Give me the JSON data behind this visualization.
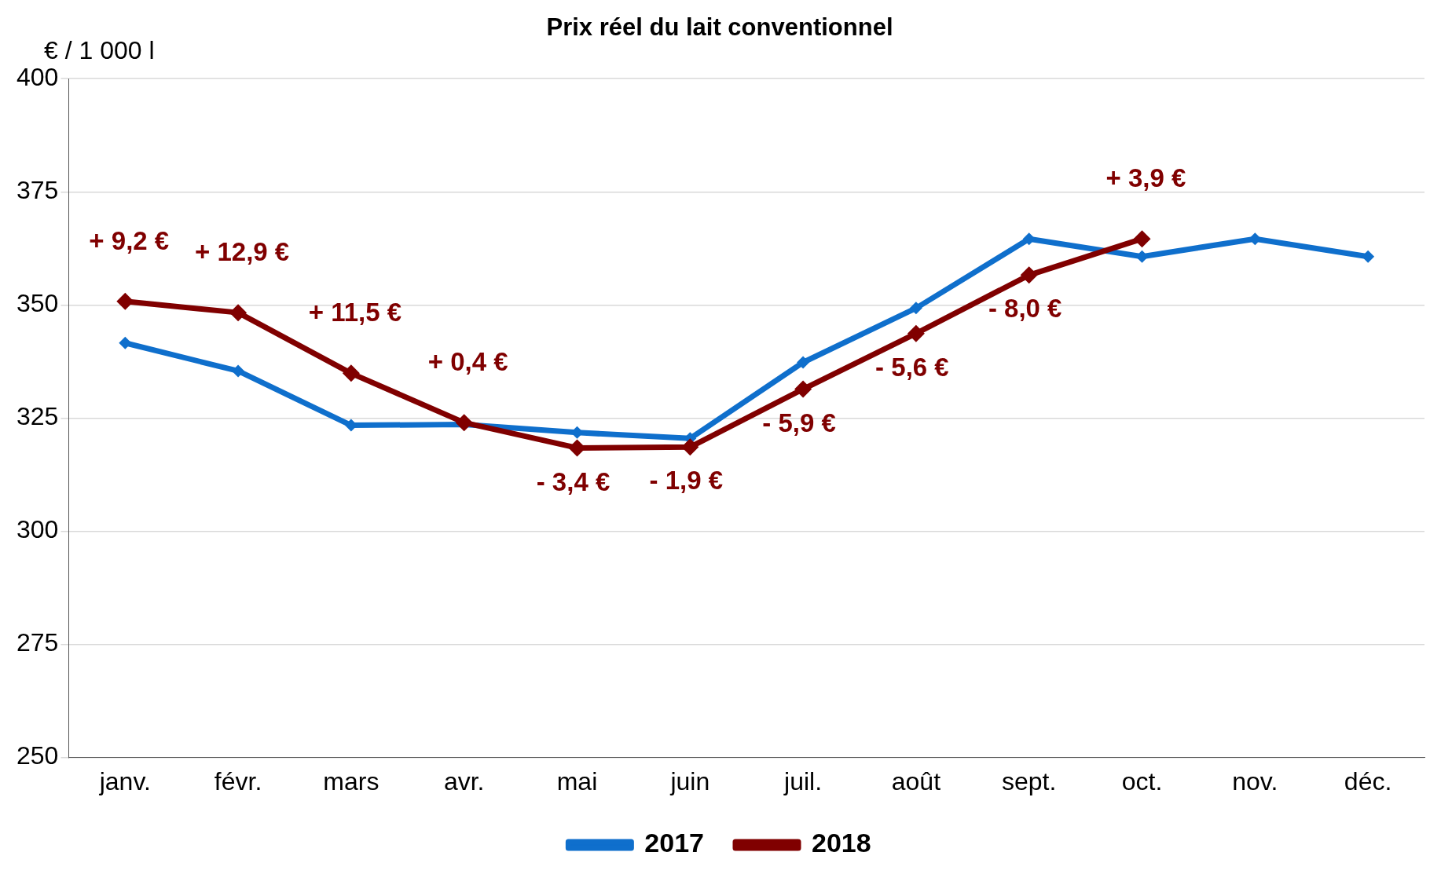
{
  "chart_data": {
    "type": "line",
    "title": "Prix réel du lait conventionnel",
    "ylabel": "€ / 1 000 l",
    "categories": [
      "janv.",
      "févr.",
      "mars",
      "avr.",
      "mai",
      "juin",
      "juil.",
      "août",
      "sept.",
      "oct.",
      "nov.",
      "déc."
    ],
    "series": [
      {
        "name": "2017",
        "color": "#0f6fcc",
        "values": [
          341.6,
          335.4,
          323.4,
          323.6,
          321.8,
          320.5,
          337.3,
          349.3,
          364.6,
          360.7,
          364.6,
          360.7
        ]
      },
      {
        "name": "2018",
        "color": "#800000",
        "values": [
          350.8,
          348.3,
          334.9,
          324.0,
          318.4,
          318.6,
          331.4,
          343.7,
          356.6,
          364.6,
          null,
          null
        ]
      }
    ],
    "ylim": [
      250,
      400
    ],
    "yticks": [
      250,
      275,
      300,
      325,
      350,
      375,
      400
    ],
    "grid": "y",
    "legend": "bottom",
    "marker": "diamond",
    "line_style": "solid",
    "annotations": [
      {
        "text": "+ 9,2 €",
        "x": "janv.",
        "y": 350.8
      },
      {
        "text": "+ 12,9 €",
        "x": "févr.",
        "y": 348.3
      },
      {
        "text": "+ 11,5 €",
        "x": "mars",
        "y": 334.9
      },
      {
        "text": "+ 0,4 €",
        "x": "avr.",
        "y": 324.0
      },
      {
        "text": "- 3,4 €",
        "x": "mai",
        "y": 318.4
      },
      {
        "text": "- 1,9 €",
        "x": "juin",
        "y": 318.6
      },
      {
        "text": "- 5,9 €",
        "x": "juil.",
        "y": 331.4
      },
      {
        "text": "- 5,6 €",
        "x": "août",
        "y": 343.7
      },
      {
        "text": "- 8,0 €",
        "x": "sept.",
        "y": 356.6
      },
      {
        "text": "+ 3,9 €",
        "x": "oct.",
        "y": 364.6
      }
    ]
  }
}
